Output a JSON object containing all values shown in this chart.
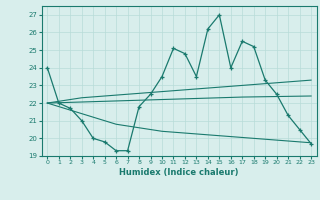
{
  "x": [
    0,
    1,
    2,
    3,
    4,
    5,
    6,
    7,
    8,
    9,
    10,
    11,
    12,
    13,
    14,
    15,
    16,
    17,
    18,
    19,
    20,
    21,
    22,
    23
  ],
  "main_y": [
    24.0,
    22.0,
    21.7,
    21.0,
    20.0,
    19.8,
    19.3,
    19.3,
    21.8,
    22.5,
    23.5,
    25.1,
    24.8,
    23.5,
    26.2,
    27.0,
    24.0,
    25.5,
    25.2,
    23.3,
    22.5,
    21.3,
    20.5,
    19.7
  ],
  "line_top_y": [
    22.0,
    22.1,
    22.2,
    22.3,
    22.35,
    22.4,
    22.45,
    22.5,
    22.55,
    22.6,
    22.65,
    22.7,
    22.75,
    22.8,
    22.85,
    22.9,
    22.95,
    23.0,
    23.05,
    23.1,
    23.15,
    23.2,
    23.25,
    23.3
  ],
  "line_mid_y": [
    22.0,
    22.02,
    22.04,
    22.06,
    22.08,
    22.1,
    22.12,
    22.14,
    22.16,
    22.18,
    22.2,
    22.22,
    22.24,
    22.26,
    22.28,
    22.3,
    22.32,
    22.34,
    22.35,
    22.36,
    22.37,
    22.38,
    22.39,
    22.4
  ],
  "line_bot_y": [
    22.0,
    21.8,
    21.6,
    21.4,
    21.2,
    21.0,
    20.8,
    20.7,
    20.6,
    20.5,
    20.4,
    20.35,
    20.3,
    20.25,
    20.2,
    20.15,
    20.1,
    20.05,
    20.0,
    19.95,
    19.9,
    19.85,
    19.8,
    19.75
  ],
  "color": "#1a7a6e",
  "bg_color": "#d8eeec",
  "grid_color": "#b8dcd8",
  "xlabel": "Humidex (Indice chaleur)",
  "ylim": [
    19,
    27.5
  ],
  "xlim": [
    -0.5,
    23.5
  ],
  "yticks": [
    19,
    20,
    21,
    22,
    23,
    24,
    25,
    26,
    27
  ],
  "xticks": [
    0,
    1,
    2,
    3,
    4,
    5,
    6,
    7,
    8,
    9,
    10,
    11,
    12,
    13,
    14,
    15,
    16,
    17,
    18,
    19,
    20,
    21,
    22,
    23
  ]
}
